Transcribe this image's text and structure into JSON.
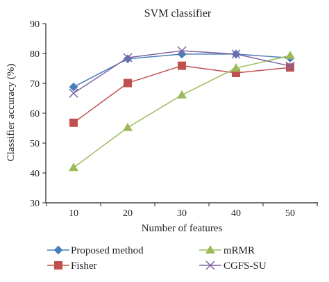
{
  "chart_data": {
    "type": "line",
    "title": "SVM classifier",
    "xlabel": "Number of features",
    "ylabel": "Classifier accuracy (%)",
    "x": [
      10,
      20,
      30,
      40,
      50
    ],
    "xlim": [
      10,
      50
    ],
    "ylim": [
      30,
      90
    ],
    "yticks": [
      30,
      40,
      50,
      60,
      70,
      80,
      90
    ],
    "grid": false,
    "legend_position": "bottom",
    "series": [
      {
        "name": "Proposed method",
        "values": [
          68.8,
          78.2,
          79.8,
          79.8,
          78.5
        ],
        "color": "#4a7ebb",
        "marker": "diamond"
      },
      {
        "name": "Fisher",
        "values": [
          56.8,
          70.1,
          75.9,
          73.5,
          75.3
        ],
        "color": "#c0504d",
        "marker": "square"
      },
      {
        "name": "mRMR",
        "values": [
          41.8,
          55.2,
          66.1,
          75.1,
          79.3
        ],
        "color": "#9bbb59",
        "marker": "triangle"
      },
      {
        "name": "CGFS-SU",
        "values": [
          66.7,
          78.6,
          80.9,
          79.8,
          75.8
        ],
        "color": "#8064a2",
        "marker": "x"
      }
    ]
  }
}
